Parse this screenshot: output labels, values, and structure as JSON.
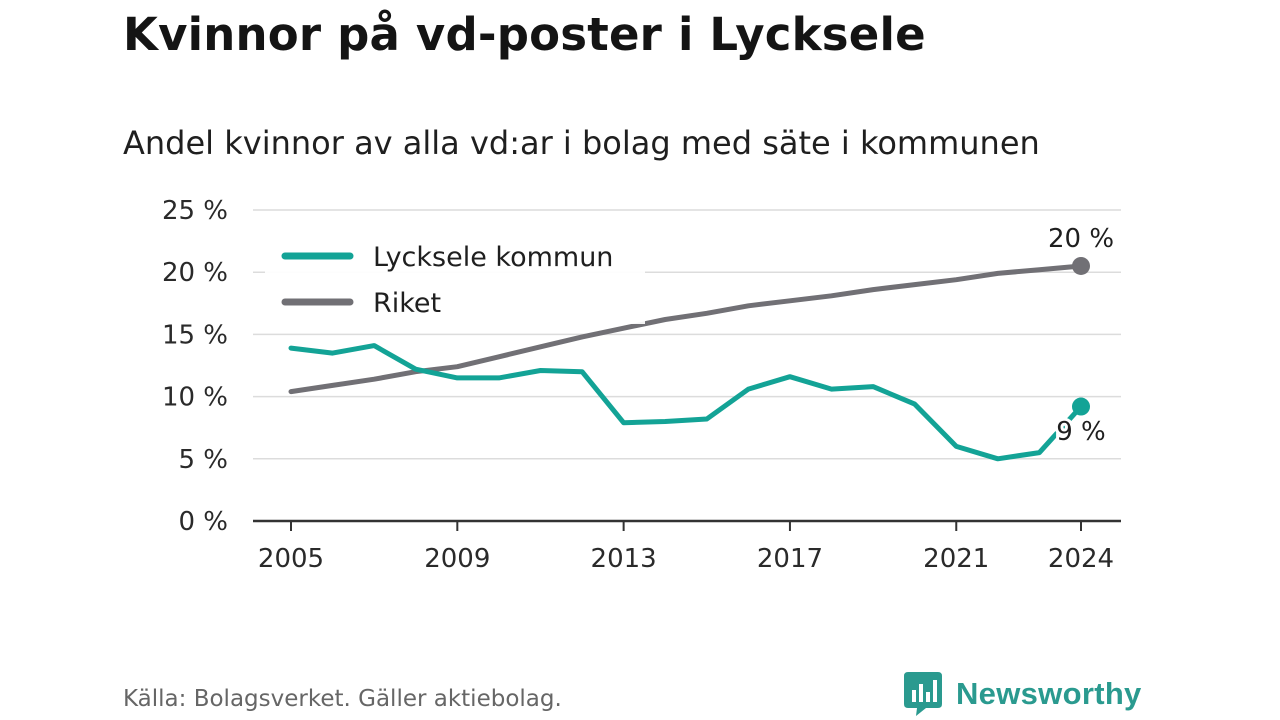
{
  "title": "Kvinnor på vd-poster i Lycksele",
  "subtitle": "Andel kvinnor av alla vd:ar i bolag med säte i kommunen",
  "source": "Källa: Bolagsverket. Gäller aktiebolag.",
  "brand": {
    "name": "Newsworthy",
    "icon": "newsworthy-logo-icon",
    "color": "#2a9a8f"
  },
  "chart_data": {
    "type": "line",
    "x": [
      2005,
      2006,
      2007,
      2008,
      2009,
      2010,
      2011,
      2012,
      2013,
      2014,
      2015,
      2016,
      2017,
      2018,
      2019,
      2020,
      2021,
      2022,
      2023,
      2024
    ],
    "series": [
      {
        "name": "Lycksele kommun",
        "color": "#13a396",
        "values": [
          13.9,
          13.5,
          14.1,
          12.2,
          11.5,
          11.5,
          12.1,
          12.0,
          7.9,
          8.0,
          8.2,
          10.6,
          11.6,
          10.6,
          10.8,
          9.4,
          6.0,
          5.0,
          5.5,
          9.2
        ],
        "end_label": "9 %"
      },
      {
        "name": "Riket",
        "color": "#717075",
        "values": [
          10.4,
          10.9,
          11.4,
          12.0,
          12.4,
          13.2,
          14.0,
          14.8,
          15.5,
          16.2,
          16.7,
          17.3,
          17.7,
          18.1,
          18.6,
          19.0,
          19.4,
          19.9,
          20.2,
          20.5
        ],
        "end_label": "20 %"
      }
    ],
    "y_ticks": [
      {
        "value": 0,
        "label": "0 %"
      },
      {
        "value": 5,
        "label": "5 %"
      },
      {
        "value": 10,
        "label": "10 %"
      },
      {
        "value": 15,
        "label": "15 %"
      },
      {
        "value": 20,
        "label": "20 %"
      },
      {
        "value": 25,
        "label": "25 %"
      }
    ],
    "x_ticks": [
      {
        "value": 2005,
        "label": "2005"
      },
      {
        "value": 2009,
        "label": "2009"
      },
      {
        "value": 2013,
        "label": "2013"
      },
      {
        "value": 2017,
        "label": "2017"
      },
      {
        "value": 2021,
        "label": "2021"
      },
      {
        "value": 2024,
        "label": "2024"
      }
    ],
    "ylim": [
      0,
      25
    ],
    "xlim": [
      2005,
      2024
    ],
    "grid": true,
    "legend_position": "top-left"
  }
}
